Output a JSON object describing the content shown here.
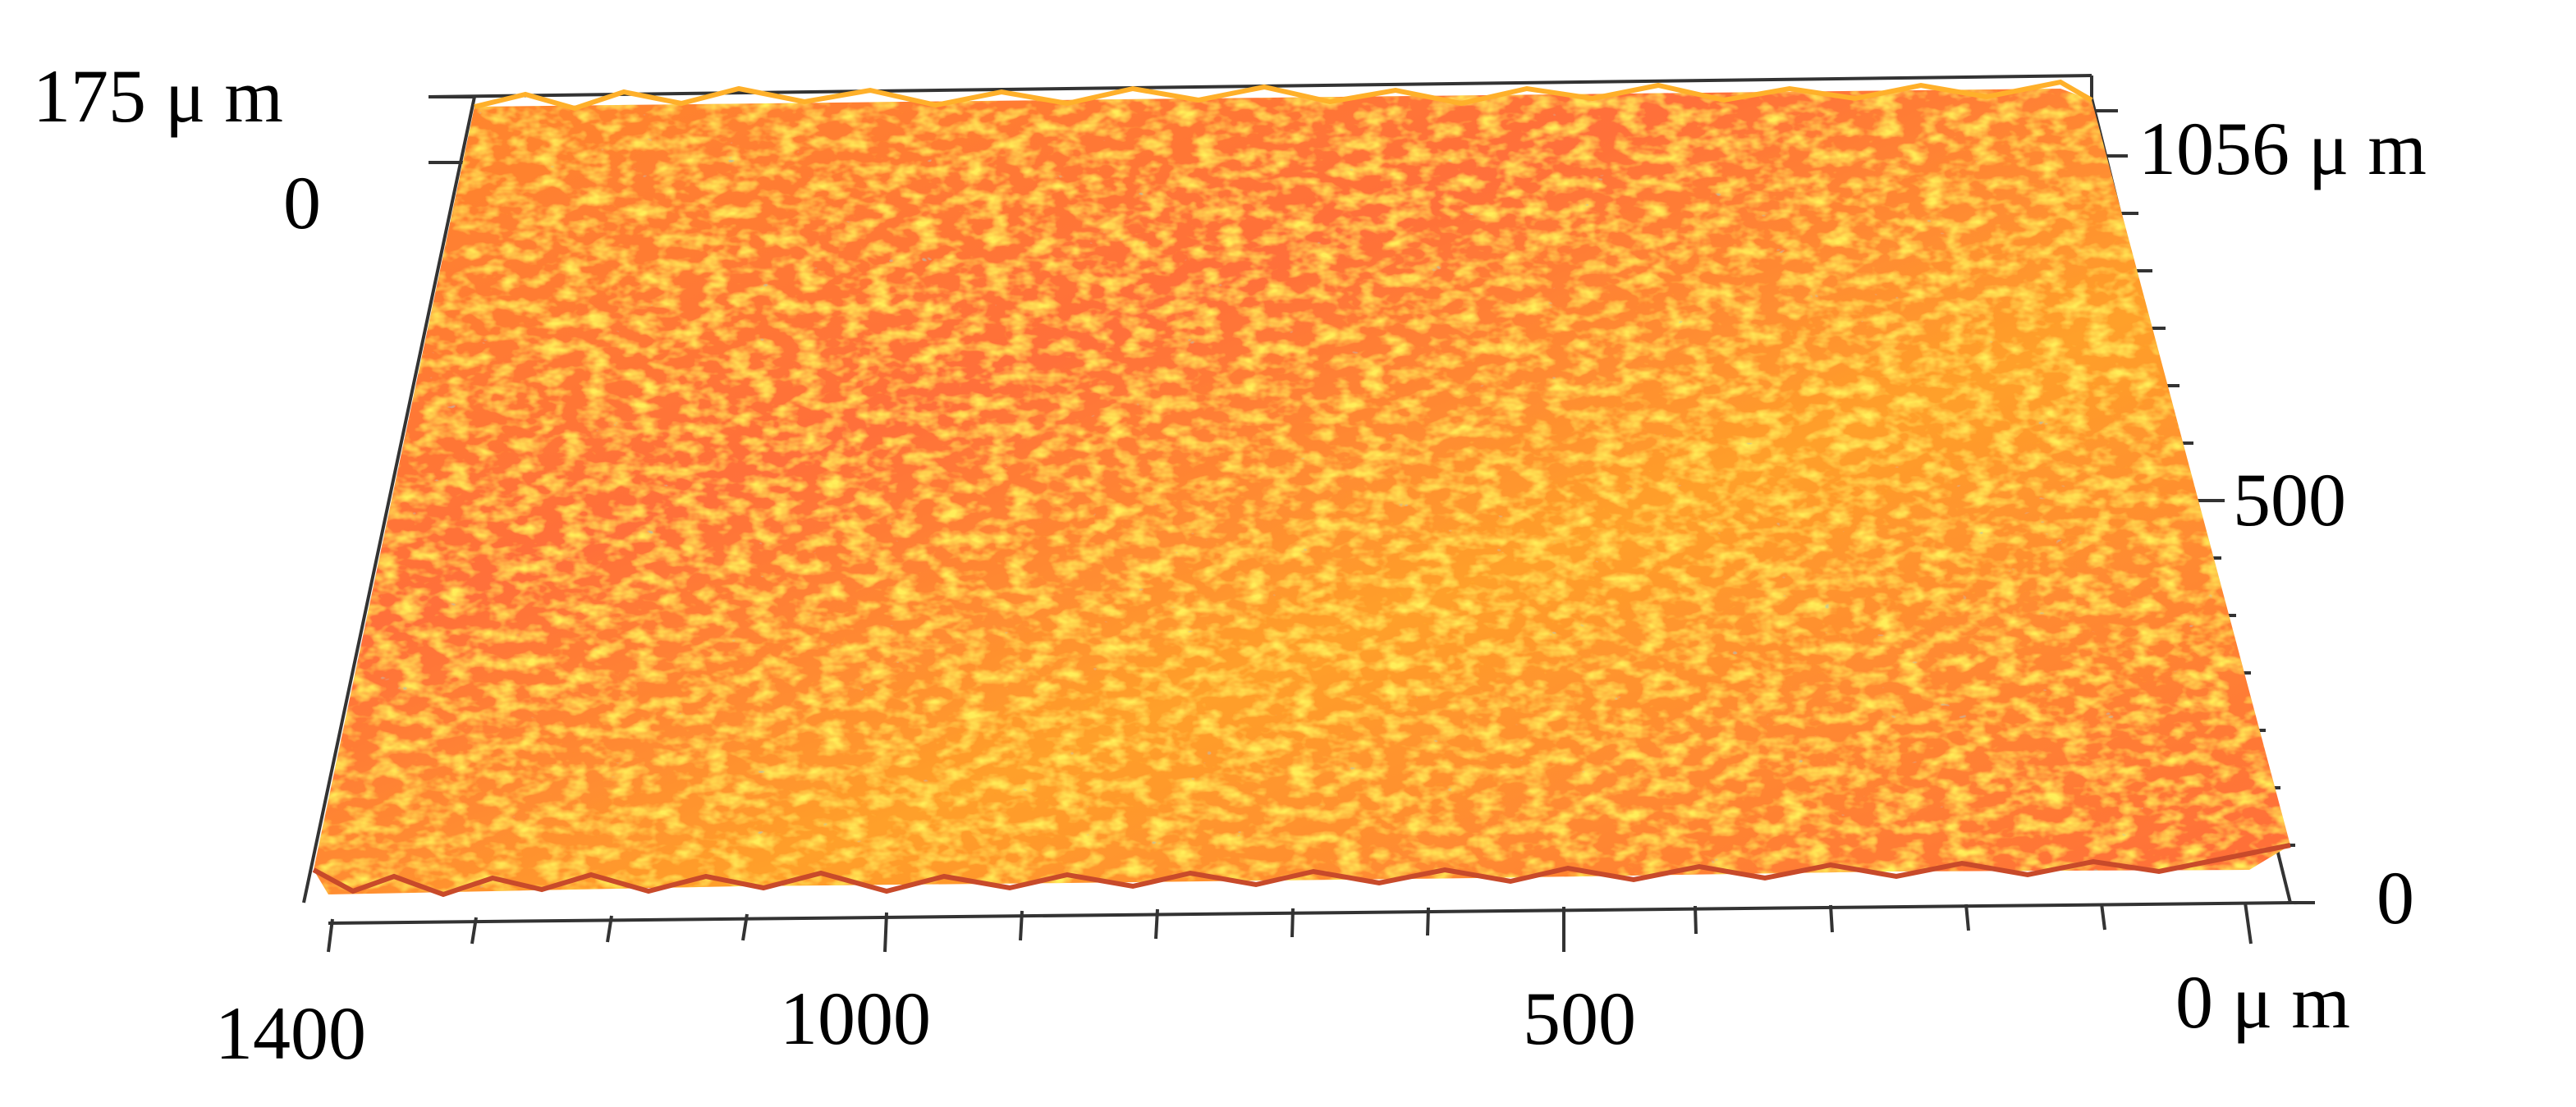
{
  "figure": {
    "z_axis": {
      "max_label": "175 μ m",
      "min_label": "0"
    },
    "y_axis": {
      "max_label": "1056 μ m",
      "mid_label": "500",
      "min_label": "0"
    },
    "x_axis": {
      "labels": [
        "1400",
        "1000",
        "500"
      ],
      "end_label": "0 μ m"
    },
    "surface": {
      "description_colors": [
        "#ff6a3a",
        "#ff9a2a",
        "#ffd02a",
        "#5c9a6a"
      ],
      "accent": "#ff7a30"
    },
    "axis_color": "#333333"
  }
}
